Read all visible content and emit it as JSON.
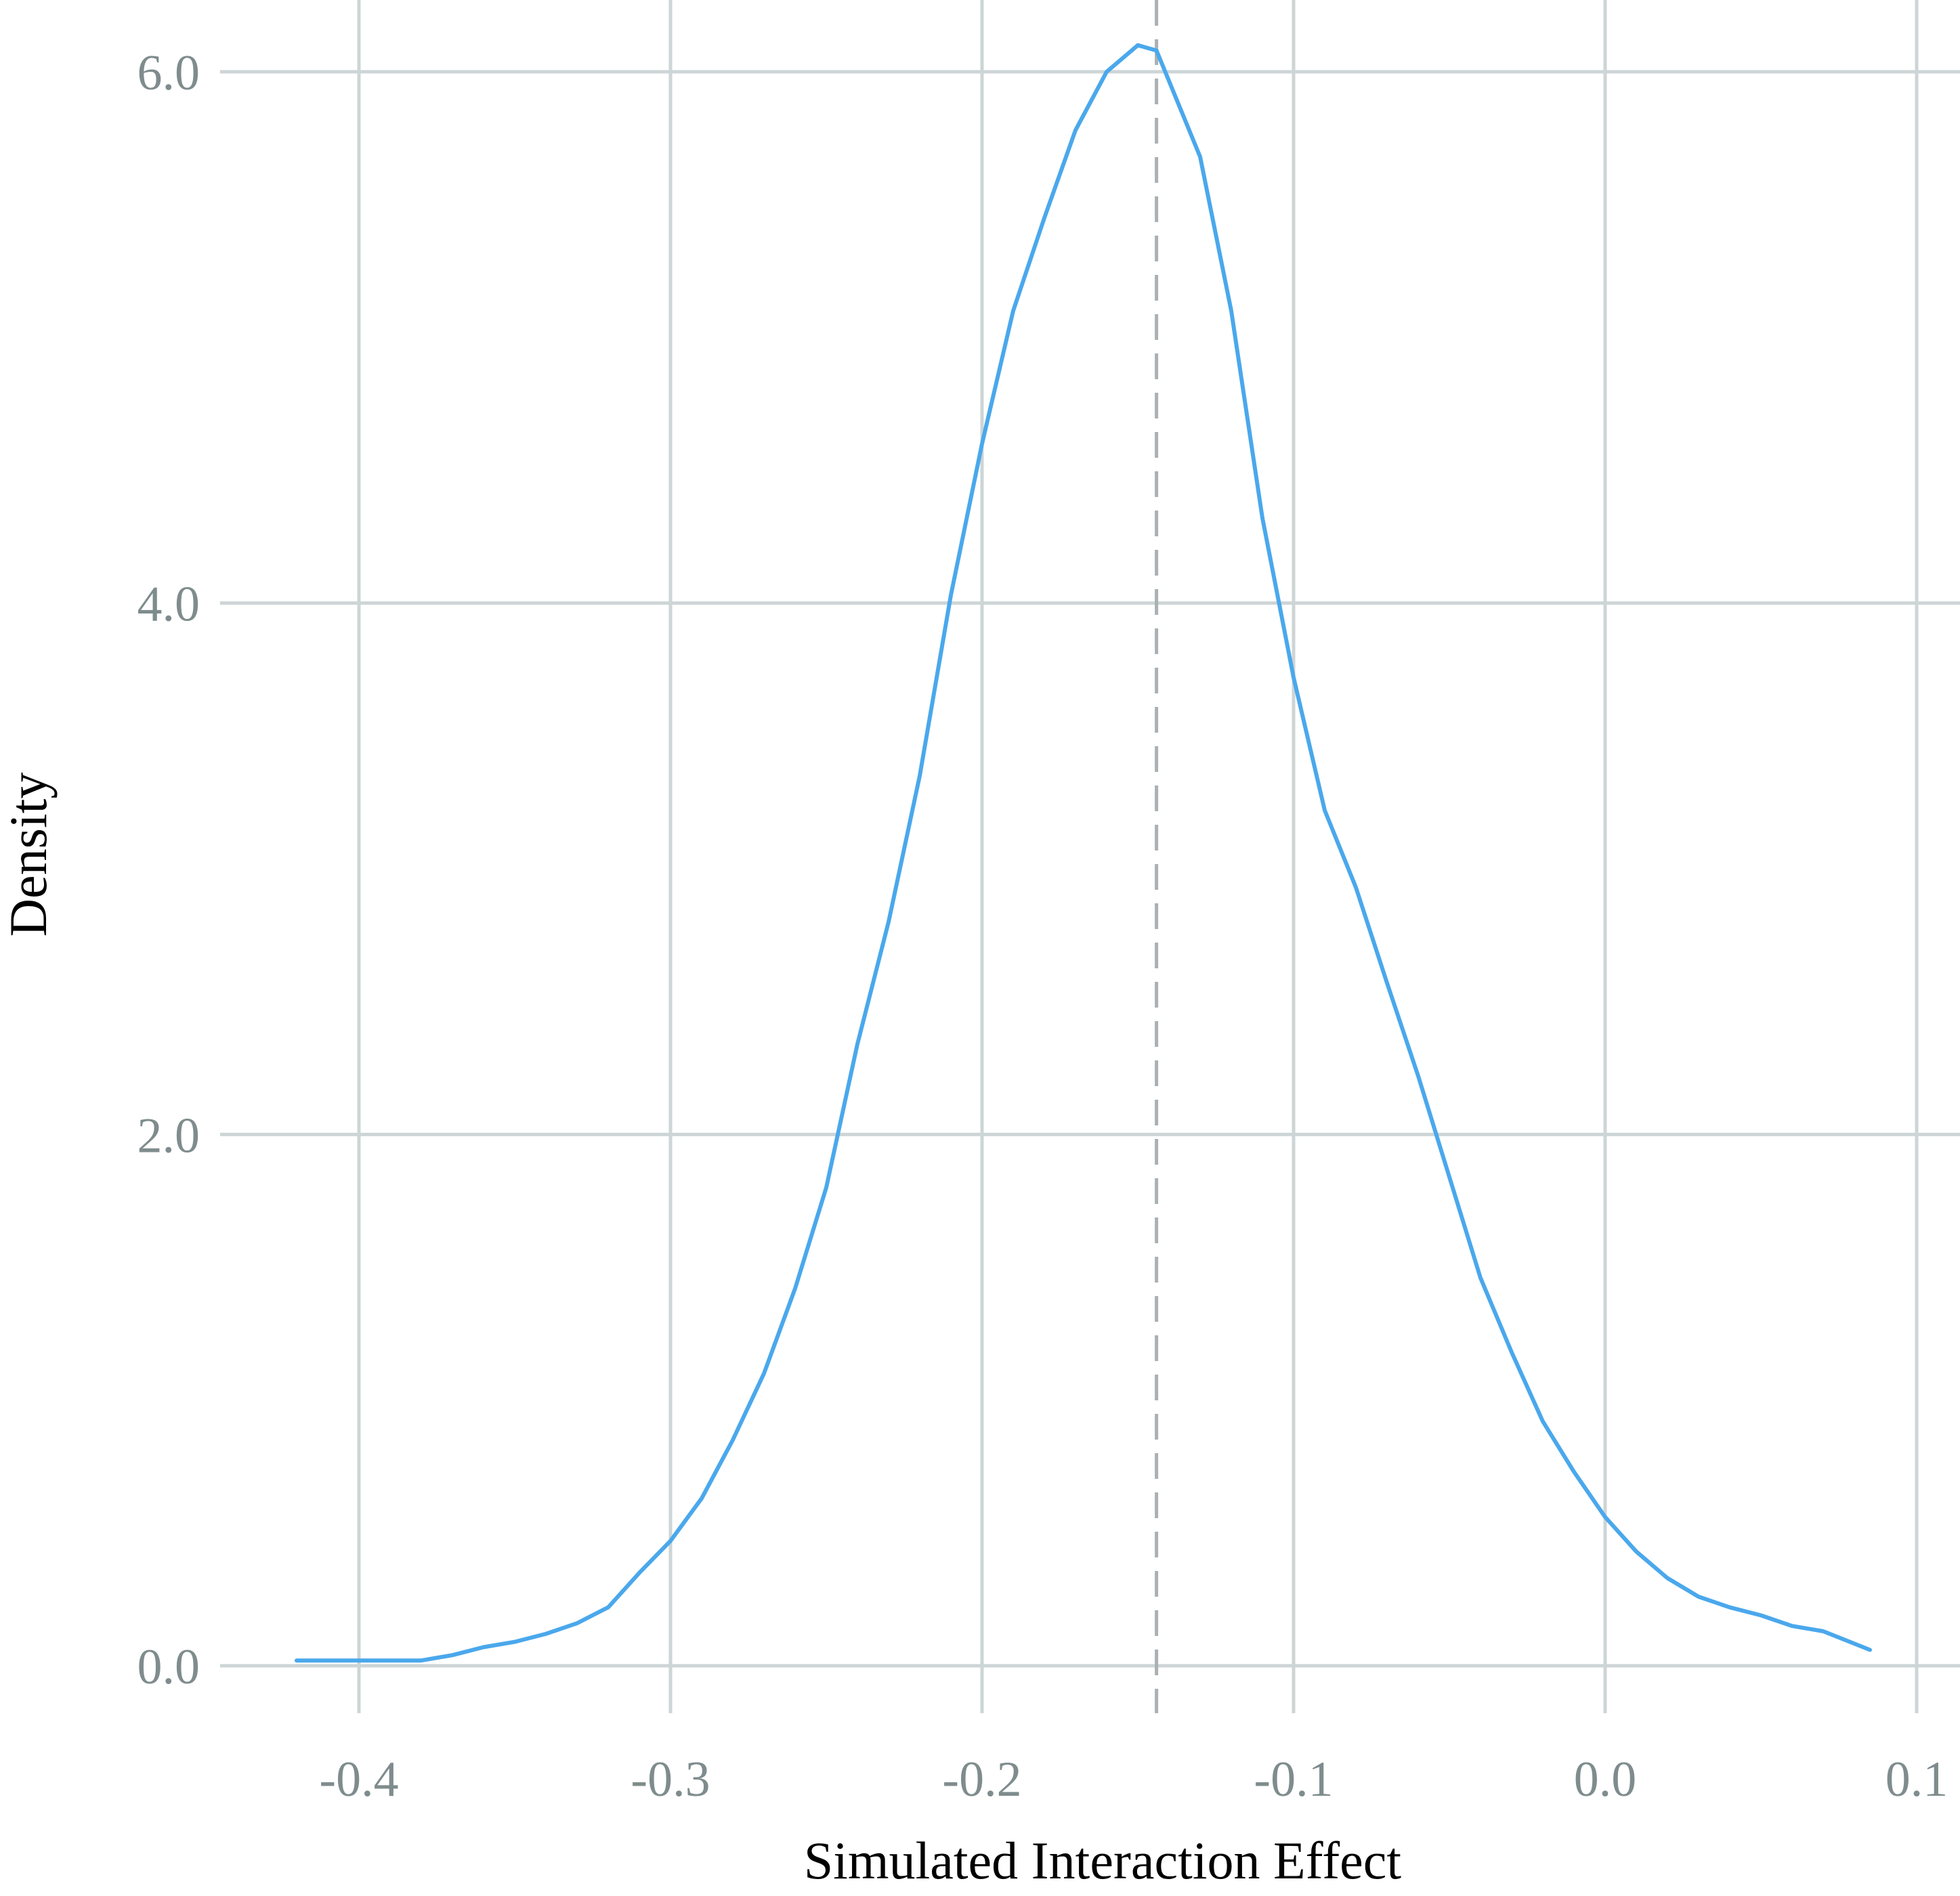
{
  "chart_data": {
    "type": "line",
    "title": "",
    "xlabel": "Simulated Interaction Effect",
    "ylabel": "Density",
    "xlim": [
      -0.46,
      0.11
    ],
    "ylim": [
      -0.1,
      6.15
    ],
    "x_ticks": [
      -0.4,
      -0.3,
      -0.2,
      -0.1,
      0.0,
      0.1
    ],
    "x_tick_labels": [
      "-0.4",
      "-0.3",
      "-0.2",
      "-0.1",
      "0.0",
      "0.1"
    ],
    "y_ticks": [
      0,
      2,
      4,
      6
    ],
    "y_tick_labels": [
      "0.0",
      "2.0",
      "4.0",
      "6.0"
    ],
    "grid": true,
    "legend": "none",
    "reference_line": {
      "x": -0.144,
      "style": "dashed",
      "color": "#a9b1b2"
    },
    "series": [
      {
        "color": "#4aa8ec",
        "x": [
          -0.42,
          -0.41,
          -0.4,
          -0.39,
          -0.38,
          -0.37,
          -0.36,
          -0.35,
          -0.34,
          -0.33,
          -0.32,
          -0.31,
          -0.3,
          -0.29,
          -0.28,
          -0.27,
          -0.26,
          -0.25,
          -0.24,
          -0.23,
          -0.22,
          -0.21,
          -0.2,
          -0.19,
          -0.18,
          -0.17,
          -0.16,
          -0.15,
          -0.144,
          -0.13,
          -0.12,
          -0.11,
          -0.1,
          -0.09,
          -0.08,
          -0.07,
          -0.06,
          -0.05,
          -0.04,
          -0.03,
          -0.02,
          -0.01,
          0.0,
          0.01,
          0.02,
          0.03,
          0.04,
          0.05,
          0.06,
          0.07,
          0.085
        ],
        "y": [
          0.02,
          0.02,
          0.02,
          0.02,
          0.02,
          0.04,
          0.07,
          0.09,
          0.12,
          0.16,
          0.22,
          0.35,
          0.47,
          0.63,
          0.85,
          1.1,
          1.42,
          1.8,
          2.34,
          2.8,
          3.35,
          4.03,
          4.6,
          5.1,
          5.45,
          5.78,
          6.0,
          6.1,
          6.08,
          5.68,
          5.1,
          4.32,
          3.72,
          3.22,
          2.93,
          2.57,
          2.22,
          1.84,
          1.46,
          1.18,
          0.92,
          0.73,
          0.56,
          0.43,
          0.33,
          0.26,
          0.22,
          0.19,
          0.15,
          0.13,
          0.06
        ]
      }
    ]
  }
}
